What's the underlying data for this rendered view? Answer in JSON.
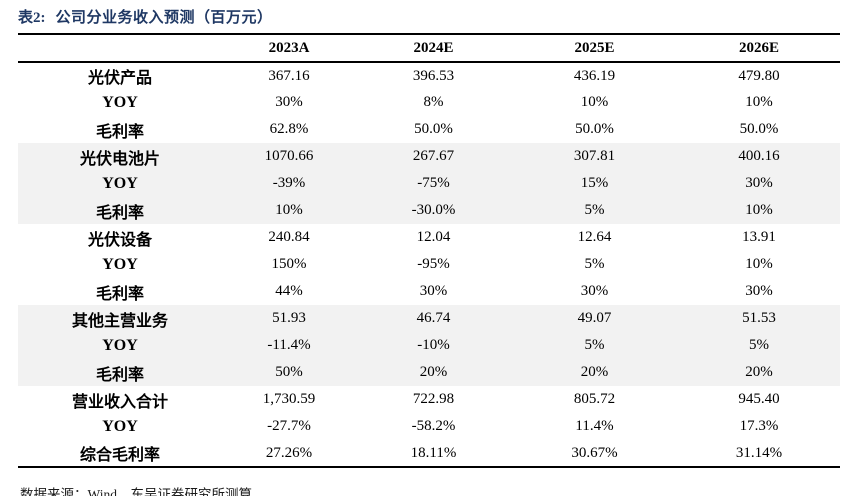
{
  "page": {
    "title_prefix": "表2:",
    "title_text": "公司分业务收入预测（百万元）",
    "footer": "数据来源：Wind，东吴证券研究所测算"
  },
  "table": {
    "columns": [
      "2023A",
      "2024E",
      "2025E",
      "2026E"
    ],
    "rows": [
      {
        "label": "光伏产品",
        "shaded": false,
        "values": [
          "367.16",
          "396.53",
          "436.19",
          "479.80"
        ]
      },
      {
        "label": "YOY",
        "shaded": false,
        "values": [
          "30%",
          "8%",
          "10%",
          "10%"
        ]
      },
      {
        "label": "毛利率",
        "shaded": false,
        "values": [
          "62.8%",
          "50.0%",
          "50.0%",
          "50.0%"
        ]
      },
      {
        "label": "光伏电池片",
        "shaded": true,
        "values": [
          "1070.66",
          "267.67",
          "307.81",
          "400.16"
        ]
      },
      {
        "label": "YOY",
        "shaded": true,
        "values": [
          "-39%",
          "-75%",
          "15%",
          "30%"
        ]
      },
      {
        "label": "毛利率",
        "shaded": true,
        "values": [
          "10%",
          "-30.0%",
          "5%",
          "10%"
        ]
      },
      {
        "label": "光伏设备",
        "shaded": false,
        "values": [
          "240.84",
          "12.04",
          "12.64",
          "13.91"
        ]
      },
      {
        "label": "YOY",
        "shaded": false,
        "values": [
          "150%",
          "-95%",
          "5%",
          "10%"
        ]
      },
      {
        "label": "毛利率",
        "shaded": false,
        "values": [
          "44%",
          "30%",
          "30%",
          "30%"
        ]
      },
      {
        "label": "其他主营业务",
        "shaded": true,
        "values": [
          "51.93",
          "46.74",
          "49.07",
          "51.53"
        ]
      },
      {
        "label": "YOY",
        "shaded": true,
        "values": [
          "-11.4%",
          "-10%",
          "5%",
          "5%"
        ]
      },
      {
        "label": "毛利率",
        "shaded": true,
        "values": [
          "50%",
          "20%",
          "20%",
          "20%"
        ]
      },
      {
        "label": "营业收入合计",
        "shaded": false,
        "values": [
          "1,730.59",
          "722.98",
          "805.72",
          "945.40"
        ]
      },
      {
        "label": "YOY",
        "shaded": false,
        "values": [
          "-27.7%",
          "-58.2%",
          "11.4%",
          "17.3%"
        ]
      },
      {
        "label": "综合毛利率",
        "shaded": false,
        "values": [
          "27.26%",
          "18.11%",
          "30.67%",
          "31.14%"
        ]
      }
    ]
  },
  "colors": {
    "title": "#1f3864",
    "shaded_row": "#f2f2f2",
    "border": "#000000",
    "text": "#000000"
  }
}
